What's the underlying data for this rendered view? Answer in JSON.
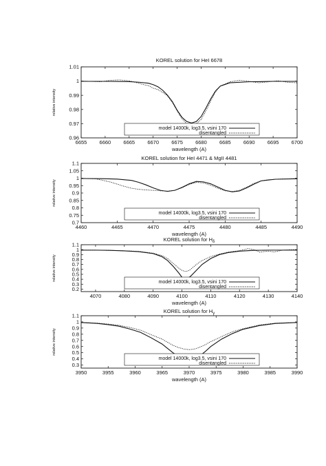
{
  "chart_data": [
    {
      "type": "line",
      "title": "KOREL solution for HeI 6678",
      "xlabel": "wavelength (A)",
      "ylabel": "relative intensity",
      "xlim": [
        6655,
        6700
      ],
      "ylim": [
        0.96,
        1.01
      ],
      "xticks": [
        "6655",
        "6660",
        "6665",
        "6670",
        "6675",
        "6680",
        "6685",
        "6690",
        "6695",
        "6700"
      ],
      "yticks": [
        "0.96",
        "0.97",
        "0.98",
        "0.99",
        "1",
        "1.01"
      ],
      "grid": false,
      "legend": "bottom-center",
      "series": [
        {
          "name": "model 14000k, log3.5, vsini 170",
          "style": "solid",
          "x": [
            6655,
            6660,
            6665,
            6667,
            6669,
            6670,
            6671,
            6672,
            6673,
            6674,
            6675,
            6676,
            6677,
            6678,
            6679,
            6680,
            6681,
            6682,
            6683,
            6684,
            6686,
            6690,
            6695,
            6700
          ],
          "y": [
            0.9998,
            0.9998,
            0.9996,
            0.9992,
            0.9985,
            0.9975,
            0.996,
            0.9935,
            0.99,
            0.9855,
            0.9795,
            0.9745,
            0.9715,
            0.9705,
            0.9715,
            0.975,
            0.981,
            0.9875,
            0.993,
            0.9965,
            0.9988,
            0.9995,
            0.9998,
            0.9998
          ]
        },
        {
          "name": "disentangled",
          "style": "dotted",
          "x": [
            6655,
            6657,
            6659,
            6661,
            6663,
            6665,
            6667,
            6668,
            6669,
            6670,
            6671,
            6672,
            6673,
            6674,
            6675,
            6676,
            6677,
            6678,
            6679,
            6680,
            6681,
            6682,
            6683,
            6684,
            6686,
            6688,
            6690,
            6692,
            6694,
            6696,
            6698,
            6700
          ],
          "y": [
            1.0,
            0.9998,
            0.9995,
            1.0005,
            1.0008,
            1.0002,
            0.9985,
            0.9975,
            0.9968,
            0.995,
            0.994,
            0.992,
            0.9895,
            0.985,
            0.979,
            0.9735,
            0.97,
            0.969,
            0.97,
            0.973,
            0.979,
            0.986,
            0.9925,
            0.9965,
            0.9995,
            1.0005,
            0.9998,
            0.9988,
            0.9995,
            1.0002,
            0.9992,
            0.9988
          ]
        }
      ]
    },
    {
      "type": "line",
      "title": "KOREL solution for HeI 4471 & MgII 4481",
      "xlabel": "wavelength (A)",
      "ylabel": "relative intensity",
      "xlim": [
        4460,
        4490
      ],
      "ylim": [
        0.7,
        1.1
      ],
      "xticks": [
        "4460",
        "4465",
        "4470",
        "4475",
        "4480",
        "4485",
        "4490"
      ],
      "yticks": [
        "0.7",
        "0.75",
        "0.8",
        "0.85",
        "0.9",
        "0.95",
        "1",
        "1.05",
        "1.1"
      ],
      "grid": false,
      "legend": "bottom-center",
      "series": [
        {
          "name": "model 14000k, log3.5, vsini 170",
          "style": "solid",
          "x": [
            4460,
            4463,
            4465,
            4467,
            4468,
            4469,
            4470,
            4471,
            4472,
            4473,
            4474,
            4475,
            4476,
            4477,
            4478,
            4479,
            4480,
            4481,
            4482,
            4483,
            4484,
            4485,
            4487,
            4490
          ],
          "y": [
            0.998,
            0.997,
            0.994,
            0.985,
            0.972,
            0.955,
            0.935,
            0.918,
            0.911,
            0.918,
            0.938,
            0.962,
            0.978,
            0.975,
            0.962,
            0.94,
            0.918,
            0.908,
            0.914,
            0.935,
            0.96,
            0.982,
            0.993,
            0.996
          ]
        },
        {
          "name": "disentangled",
          "style": "dotted",
          "x": [
            4460,
            4462,
            4464,
            4466,
            4467,
            4468,
            4469,
            4470,
            4471,
            4472,
            4473,
            4474,
            4475,
            4476,
            4477,
            4478,
            4479,
            4480,
            4481,
            4482,
            4483,
            4484,
            4485,
            4486,
            4488,
            4490
          ],
          "y": [
            0.998,
            0.996,
            0.975,
            0.945,
            0.932,
            0.925,
            0.921,
            0.918,
            0.915,
            0.913,
            0.918,
            0.935,
            0.958,
            0.972,
            0.968,
            0.952,
            0.932,
            0.915,
            0.91,
            0.918,
            0.94,
            0.965,
            0.982,
            0.99,
            0.995,
            0.997
          ]
        }
      ]
    },
    {
      "type": "line",
      "title": "KOREL solution for H",
      "title_sub": "δ",
      "xlabel": "wavelength (A)",
      "ylabel": "relative intensity",
      "xlim": [
        4065,
        4140
      ],
      "ylim": [
        0.15,
        1.1
      ],
      "xticks": [
        "4070",
        "4080",
        "4090",
        "4100",
        "4110",
        "4120",
        "4130",
        "4140"
      ],
      "yticks": [
        "0.2",
        "0.3",
        "0.4",
        "0.5",
        "0.6",
        "0.7",
        "0.8",
        "0.9",
        "1",
        "1.1"
      ],
      "grid": false,
      "legend": "bottom-center",
      "series": [
        {
          "name": "model 14000k, log3.5, vsini 170",
          "style": "solid",
          "x": [
            4065,
            4070,
            4075,
            4080,
            4085,
            4090,
            4093,
            4095,
            4097,
            4099,
            4100,
            4101,
            4102,
            4103,
            4105,
            4107,
            4110,
            4113,
            4116,
            4120,
            4125,
            4130,
            4135,
            4140
          ],
          "y": [
            0.99,
            0.99,
            0.985,
            0.975,
            0.96,
            0.92,
            0.86,
            0.78,
            0.66,
            0.52,
            0.44,
            0.41,
            0.42,
            0.46,
            0.58,
            0.7,
            0.82,
            0.9,
            0.94,
            0.97,
            0.985,
            0.99,
            0.99,
            0.99
          ]
        },
        {
          "name": "disentangled",
          "style": "dotted",
          "x": [
            4065,
            4070,
            4075,
            4080,
            4085,
            4090,
            4093,
            4095,
            4097,
            4099,
            4100,
            4101,
            4102,
            4103,
            4105,
            4107,
            4110,
            4113,
            4116,
            4120,
            4123,
            4125,
            4127,
            4130,
            4132,
            4135,
            4138,
            4140
          ],
          "y": [
            0.99,
            0.99,
            0.985,
            0.977,
            0.965,
            0.93,
            0.88,
            0.82,
            0.72,
            0.62,
            0.58,
            0.56,
            0.565,
            0.6,
            0.7,
            0.78,
            0.86,
            0.91,
            0.95,
            0.98,
            1.02,
            1.0,
            0.95,
            0.97,
            0.955,
            0.99,
            1.0,
            1.0
          ]
        }
      ]
    },
    {
      "type": "line",
      "title": "KOREL solution for H",
      "title_sub": "γ",
      "xlabel": "wavelength (A)",
      "ylabel": "relative intensity",
      "xlim": [
        3950,
        3990
      ],
      "ylim": [
        0.25,
        1.1
      ],
      "xticks": [
        "3950",
        "3955",
        "3960",
        "3965",
        "3970",
        "3975",
        "3980",
        "3985",
        "3990"
      ],
      "yticks": [
        "0.3",
        "0.4",
        "0.5",
        "0.6",
        "0.7",
        "0.8",
        "0.9",
        "1",
        "1.1"
      ],
      "grid": false,
      "legend": "bottom-center",
      "series": [
        {
          "name": "model 14000k, log3.5, vsini 170",
          "style": "solid",
          "x": [
            3950,
            3953,
            3955,
            3957,
            3959,
            3961,
            3963,
            3965,
            3966,
            3967,
            3968,
            3969,
            3970,
            3971,
            3972,
            3973,
            3974,
            3976,
            3978,
            3980,
            3983,
            3986,
            3990
          ],
          "y": [
            0.99,
            0.975,
            0.955,
            0.93,
            0.885,
            0.83,
            0.74,
            0.64,
            0.57,
            0.5,
            0.44,
            0.405,
            0.395,
            0.41,
            0.45,
            0.52,
            0.6,
            0.72,
            0.81,
            0.88,
            0.94,
            0.975,
            0.99
          ]
        },
        {
          "name": "disentangled",
          "style": "dotted",
          "x": [
            3950,
            3953,
            3955,
            3957,
            3959,
            3961,
            3963,
            3965,
            3966,
            3967,
            3968,
            3969,
            3970,
            3971,
            3972,
            3973,
            3974,
            3976,
            3978,
            3980,
            3983,
            3986,
            3990
          ],
          "y": [
            0.99,
            0.98,
            0.965,
            0.945,
            0.91,
            0.865,
            0.79,
            0.72,
            0.67,
            0.62,
            0.585,
            0.56,
            0.55,
            0.56,
            0.59,
            0.63,
            0.68,
            0.76,
            0.84,
            0.89,
            0.95,
            0.98,
            0.99
          ]
        }
      ]
    }
  ]
}
